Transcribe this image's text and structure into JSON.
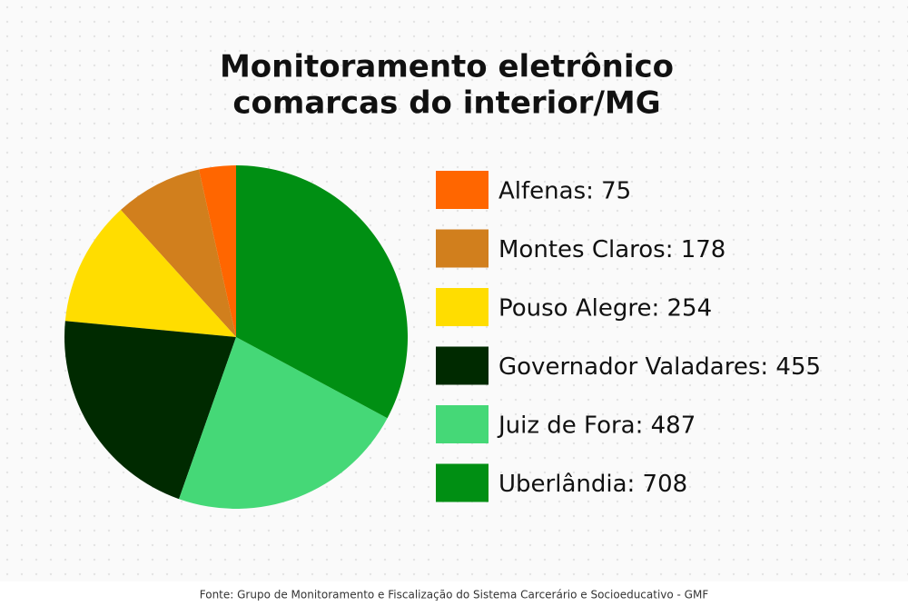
{
  "chart_data": {
    "type": "pie",
    "title": [
      "Monitoramento eletrônico",
      "comarcas do interior/MG"
    ],
    "categories": [
      "Alfenas: 75",
      "Montes Claros: 178",
      "Pouso Alegre: 254",
      "Governador Valadares: 455",
      "Juiz de Fora: 487",
      "Uberlândia: 708"
    ],
    "values": [
      75,
      178,
      254,
      455,
      487,
      708
    ],
    "colors": [
      "#ff6600",
      "#d17f1d",
      "#ffdd00",
      "#002a00",
      "#45d877",
      "#008f13"
    ],
    "direction": "counterclockwise",
    "source": "Fonte: Grupo de Monitoramento e Fiscalização do Sistema Carcerário e Socioeducativo - GMF"
  }
}
